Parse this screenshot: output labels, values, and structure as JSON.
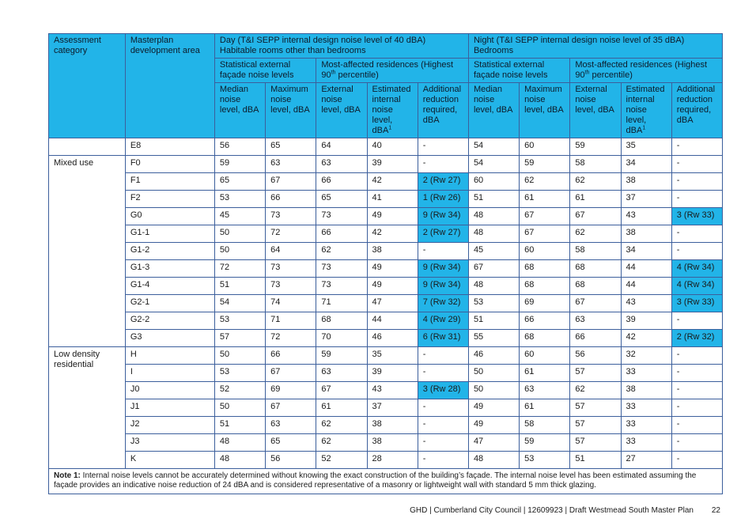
{
  "table": {
    "headers": {
      "assessment_category": "Assessment category",
      "masterplan_area": "Masterplan development area",
      "day_title": "Day (T&I SEPP internal design noise level of 40 dBA)",
      "day_subtitle": "Habitable rooms other than bedrooms",
      "night_title": "Night (T&I SEPP internal design noise level of 35 dBA)",
      "night_subtitle": "Bedrooms",
      "statistical_external": "Statistical external façade noise levels",
      "most_affected_pre": "Most-affected residences (Highest 90",
      "most_affected_sup": "th",
      "most_affected_post": " percentile)",
      "median": "Median noise level, dBA",
      "maximum": "Maximum noise level, dBA",
      "external": "External noise level, dBA",
      "estimated_internal": "Estimated internal noise level, dBA",
      "estimated_sup": "1",
      "additional_reduction": "Additional reduction required, dBA"
    },
    "rows": [
      {
        "category": "",
        "area": "E8",
        "day": [
          "56",
          "65",
          "64",
          "40",
          "-"
        ],
        "night": [
          "54",
          "60",
          "59",
          "35",
          "-"
        ]
      },
      {
        "category": "Mixed use",
        "area": "F0",
        "day": [
          "59",
          "63",
          "63",
          "39",
          "-"
        ],
        "night": [
          "54",
          "59",
          "58",
          "34",
          "-"
        ]
      },
      {
        "category": "",
        "area": "F1",
        "day": [
          "65",
          "67",
          "66",
          "42",
          "2 (Rw 27)"
        ],
        "night": [
          "60",
          "62",
          "62",
          "38",
          "-"
        ]
      },
      {
        "category": "",
        "area": "F2",
        "day": [
          "53",
          "66",
          "65",
          "41",
          "1 (Rw 26)"
        ],
        "night": [
          "51",
          "61",
          "61",
          "37",
          "-"
        ]
      },
      {
        "category": "",
        "area": "G0",
        "day": [
          "45",
          "73",
          "73",
          "49",
          "9 (Rw 34)"
        ],
        "night": [
          "48",
          "67",
          "67",
          "43",
          "3 (Rw 33)"
        ]
      },
      {
        "category": "",
        "area": "G1-1",
        "day": [
          "50",
          "72",
          "66",
          "42",
          "2 (Rw 27)"
        ],
        "night": [
          "48",
          "67",
          "62",
          "38",
          "-"
        ]
      },
      {
        "category": "",
        "area": "G1-2",
        "day": [
          "50",
          "64",
          "62",
          "38",
          "-"
        ],
        "night": [
          "45",
          "60",
          "58",
          "34",
          "-"
        ]
      },
      {
        "category": "",
        "area": "G1-3",
        "day": [
          "72",
          "73",
          "73",
          "49",
          "9 (Rw 34)"
        ],
        "night": [
          "67",
          "68",
          "68",
          "44",
          "4 (Rw 34)"
        ]
      },
      {
        "category": "",
        "area": "G1-4",
        "day": [
          "51",
          "73",
          "73",
          "49",
          "9 (Rw 34)"
        ],
        "night": [
          "48",
          "68",
          "68",
          "44",
          "4 (Rw 34)"
        ]
      },
      {
        "category": "",
        "area": "G2-1",
        "day": [
          "54",
          "74",
          "71",
          "47",
          "7 (Rw 32)"
        ],
        "night": [
          "53",
          "69",
          "67",
          "43",
          "3 (Rw 33)"
        ]
      },
      {
        "category": "",
        "area": "G2-2",
        "day": [
          "53",
          "71",
          "68",
          "44",
          "4 (Rw 29)"
        ],
        "night": [
          "51",
          "66",
          "63",
          "39",
          "-"
        ]
      },
      {
        "category": "",
        "area": "G3",
        "day": [
          "57",
          "72",
          "70",
          "46",
          "6 (Rw 31)"
        ],
        "night": [
          "55",
          "68",
          "66",
          "42",
          "2 (Rw 32)"
        ]
      },
      {
        "category": "Low density residential",
        "area": "H",
        "day": [
          "50",
          "66",
          "59",
          "35",
          "-"
        ],
        "night": [
          "46",
          "60",
          "56",
          "32",
          "-"
        ]
      },
      {
        "category": "",
        "area": "I",
        "day": [
          "53",
          "67",
          "63",
          "39",
          "-"
        ],
        "night": [
          "50",
          "61",
          "57",
          "33",
          "-"
        ]
      },
      {
        "category": "",
        "area": "J0",
        "day": [
          "52",
          "69",
          "67",
          "43",
          "3 (Rw 28)"
        ],
        "night": [
          "50",
          "63",
          "62",
          "38",
          "-"
        ]
      },
      {
        "category": "",
        "area": "J1",
        "day": [
          "50",
          "67",
          "61",
          "37",
          "-"
        ],
        "night": [
          "49",
          "61",
          "57",
          "33",
          "-"
        ]
      },
      {
        "category": "",
        "area": "J2",
        "day": [
          "51",
          "63",
          "62",
          "38",
          "-"
        ],
        "night": [
          "49",
          "58",
          "57",
          "33",
          "-"
        ]
      },
      {
        "category": "",
        "area": "J3",
        "day": [
          "48",
          "65",
          "62",
          "38",
          "-"
        ],
        "night": [
          "47",
          "59",
          "57",
          "33",
          "-"
        ]
      },
      {
        "category": "",
        "area": "K",
        "day": [
          "48",
          "56",
          "52",
          "28",
          "-"
        ],
        "night": [
          "48",
          "53",
          "51",
          "27",
          "-"
        ]
      }
    ],
    "note_label": "Note 1:",
    "note_text": " Internal noise levels cannot be accurately determined without knowing the exact construction of the building’s façade. The internal noise level has been estimated assuming the façade provides an indicative noise reduction of 24 dBA and is considered representative of a masonry or lightweight wall with standard 5 mm thick glazing."
  },
  "footer": {
    "text": "GHD | Cumberland City Council | 12609923 | Draft Westmead South Master Plan",
    "page": "22"
  },
  "colors": {
    "header_fill": "#22b4e8",
    "border": "#3c5f9c"
  }
}
